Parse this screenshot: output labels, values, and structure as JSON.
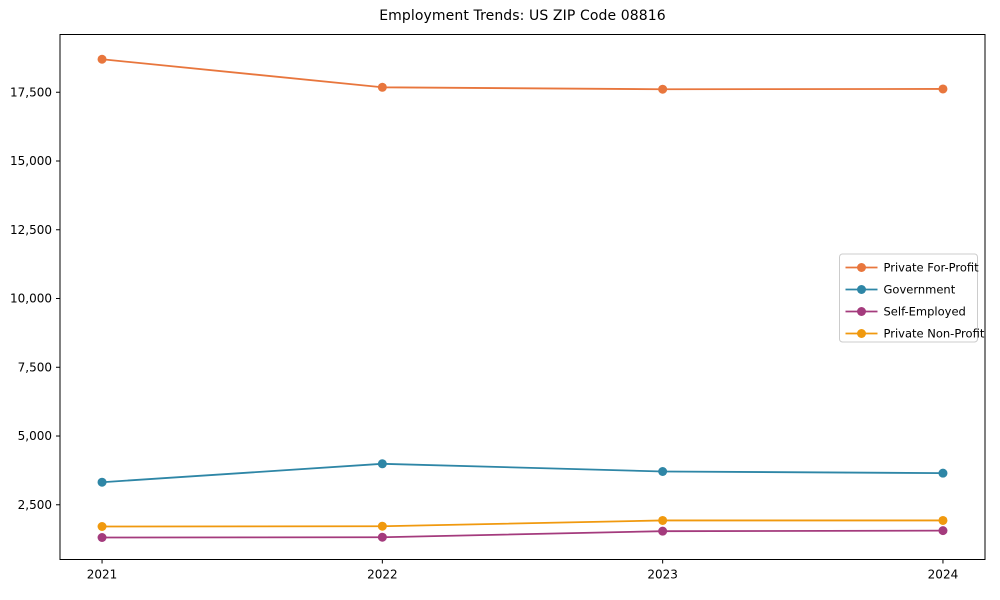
{
  "figure": {
    "background": "#ffffff",
    "frame_color": "#000000",
    "legend_border_color": "#cccccc",
    "legend_background": "#ffffff"
  },
  "chart_data": {
    "type": "line",
    "title": "Employment Trends: US ZIP Code 08816",
    "xlabel": "",
    "ylabel": "",
    "x": [
      2021,
      2022,
      2023,
      2024
    ],
    "x_tick_labels": [
      "2021",
      "2022",
      "2023",
      "2024"
    ],
    "y_ticks": [
      2500,
      5000,
      7500,
      10000,
      12500,
      15000,
      17500
    ],
    "y_tick_labels": [
      "2,500",
      "5,000",
      "7,500",
      "10,000",
      "12,500",
      "15,000",
      "17,500"
    ],
    "xlim": [
      2020.85,
      2024.15
    ],
    "ylim": [
      510,
      19600
    ],
    "grid": false,
    "legend_position": "center right",
    "marker": "circle",
    "series": [
      {
        "name": "Private For-Profit",
        "color": "#e8763d",
        "values": [
          18700,
          17680,
          17610,
          17620
        ]
      },
      {
        "name": "Government",
        "color": "#2e86a6",
        "values": [
          3320,
          3990,
          3710,
          3650
        ]
      },
      {
        "name": "Self-Employed",
        "color": "#a43b7d",
        "values": [
          1310,
          1320,
          1540,
          1560
        ]
      },
      {
        "name": "Private Non-Profit",
        "color": "#f0990e",
        "values": [
          1710,
          1720,
          1930,
          1930
        ]
      }
    ]
  }
}
